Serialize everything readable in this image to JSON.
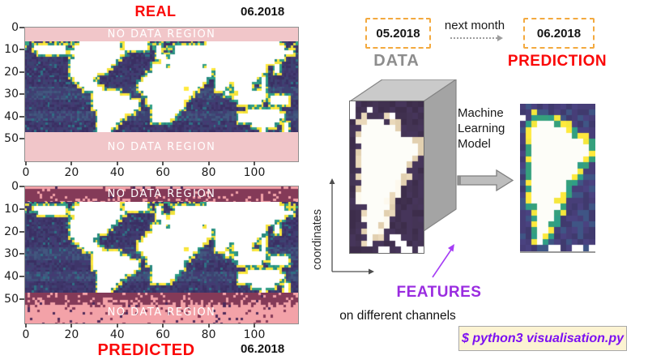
{
  "figure": {
    "real_plot": {
      "title": "REAL",
      "date": "06.2018",
      "no_data_top": "NO DATA REGION",
      "no_data_bottom": "NO DATA REGION",
      "y_ticks": [
        "0",
        "10",
        "20",
        "30",
        "40",
        "50"
      ],
      "x_ticks": [
        "0",
        "20",
        "40",
        "60",
        "80",
        "100"
      ]
    },
    "predicted_plot": {
      "title": "PREDICTED",
      "date": "06.2018",
      "no_data_top": "NO DATA REGION",
      "no_data_bottom": "NO DATA REGION",
      "y_ticks": [
        "0",
        "10",
        "20",
        "30",
        "40",
        "50"
      ],
      "x_ticks": [
        "0",
        "20",
        "40",
        "60",
        "80",
        "100"
      ]
    },
    "flow": {
      "input_date": "05.2018",
      "next_month_label": "next month",
      "output_date": "06.2018",
      "data_label": "DATA",
      "prediction_label": "PREDICTION",
      "model_label": "Machine Learning Model",
      "coordinates_label": "coordinates",
      "features_label": "FEATURES",
      "channels_label": "on different channels",
      "command": "$ python3 visualisation.py"
    },
    "colors": {
      "accent_red": "#fa0808",
      "accent_purple": "#9a2ce0",
      "command_purple": "#7c10f2",
      "box_border_orange": "#f3a93e",
      "no_data_pink": "#f1c6c9",
      "no_data_maroon": "#843a58",
      "no_data_salmon": "#f3a2a8",
      "label_gray": "#8d8d8d"
    }
  },
  "chart_data": {
    "type": "heatmap",
    "legend": {
      "L": "land",
      ".": "ocean",
      "W": "white no-data cell",
      "y": "yellow cell",
      "g": "green cell"
    },
    "world_land_mask_rows": [
      "............LLLLLLLLL.LLLLL.............LLLLLLLLLLLLLLLL....",
      "..LLLLLLL..LLLLLLLLLL.LLLLL..L...LLLLLLLLLLLLLLLLLLLLLLLL..",
      "...LLLLLL.LLLLLLLLLLLL.......L...LLLLLLLLLLLLLLLLLLLLLLLLLL.",
      "...........LLLLLLLLLL........LL.LLLLLLLLLLLLLLLLLLLLLLLLL...",
      "..........LLLLLLLLLL..........LLLLLLLLLLLLLLLLLLLLLLLLL.....",
      "..........LLLLLLLLL.........LLL.LLLLLLL.LLLLLLLLLLLLL..L....",
      "..........LLLLLLLL..........LLLLLLLLLLLLL.LLLLLLLLLLL..L....",
      "..........LLLLLL...........LLLLLLLLLLLLLL.LLLLLLLLLL........",
      "...........LLLL...........LLLLLLLLLLLLLL..LLLLLLLLL.L.......",
      "............LLLL.........LLLLLLLLLLLLLL...LLL.LLLL..L.......",
      ".............LLLL........LLLLLLLLLL.LL....LL..LLLL..L.......",
      "...............LLLLLL.....LLLLLLLLLLL.......L..LLLLLL.......",
      "...............LLLLLLLL....LLLLLLLLL..........LLLLLLL.LLLL..",
      "...............LLLLLLLLLL..LLLLLLLL............LLLLL..LLLL..",
      "...............LLLLLLLLLL...LLLLLLL.........................",
      "................LLLLLLLL....LLLLLL...............LLLLLLL....",
      "................LLLLLL......LLLLL..............LLLLLLLLLL...",
      "................LLLLL.......LLLL...............LLLLLLLLL....",
      "................LLLL..............................LLLLL..L..",
      "................LLL.................................L....L.."
    ],
    "south_america_mask_rows": [
      ".............",
      "..y..........",
      "W..gg........",
      "...LLLg......",
      "..LLLLLL.....",
      "..LLLLLLLg...",
      "..LLLLLLLLL..",
      "..LLLLLLLLLL.",
      "..LLLLLLLLLL.",
      "..LLLLLLLLL..",
      "..LLLLLLLL...",
      "..LLLLLLLL...",
      "..LLLLLLL....",
      "..LLLLLL.....",
      "..LLLLLL.....",
      "..LLLLL......",
      "..LLLL.......",
      "...LLLL......",
      "...LLL.......",
      "...LLL.......",
      "...LL........",
      "...LL........",
      "...L.........",
      "...W.........",
      ".....WW..WW.W"
    ]
  }
}
